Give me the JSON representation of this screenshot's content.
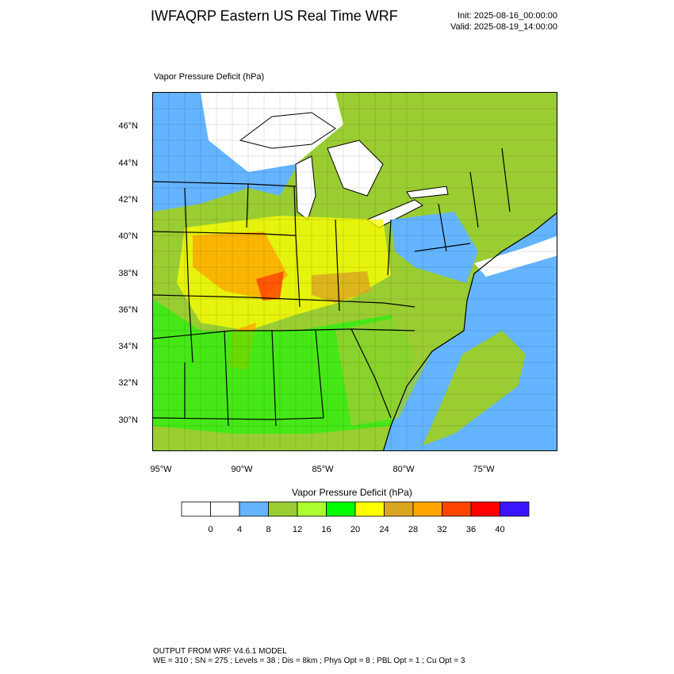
{
  "header": {
    "title": "IWFAQRP Eastern US Real Time WRF",
    "init": "Init: 2025-08-16_00:00:00",
    "valid": "Valid: 2025-08-19_14:00:00"
  },
  "field_label": "Vapor Pressure Deficit   (hPa)",
  "axes": {
    "lat_labels": [
      "46°N",
      "44°N",
      "42°N",
      "40°N",
      "38°N",
      "36°N",
      "34°N",
      "32°N",
      "30°N"
    ],
    "lon_labels": [
      "95°W",
      "90°W",
      "85°W",
      "80°W",
      "75°W"
    ]
  },
  "colorbar": {
    "title": "Vapor Pressure Deficit  (hPa)",
    "labels": [
      "0",
      "4",
      "8",
      "12",
      "16",
      "20",
      "24",
      "28",
      "32",
      "36",
      "40"
    ],
    "colors": [
      "#ffffff",
      "#ffffff",
      "#64b4ff",
      "#9acd32",
      "#adff2f",
      "#00ff00",
      "#ffff00",
      "#daa520",
      "#ffa500",
      "#ff4500",
      "#ff0000",
      "#3c14ff"
    ]
  },
  "footer": {
    "line1": "OUTPUT FROM WRF V4.6.1 MODEL",
    "line2": "WE = 310 ; SN = 275 ; Levels = 38 ; Dis = 8km ; Phys Opt = 8 ; PBL Opt = 1 ; Cu Opt = 3"
  }
}
